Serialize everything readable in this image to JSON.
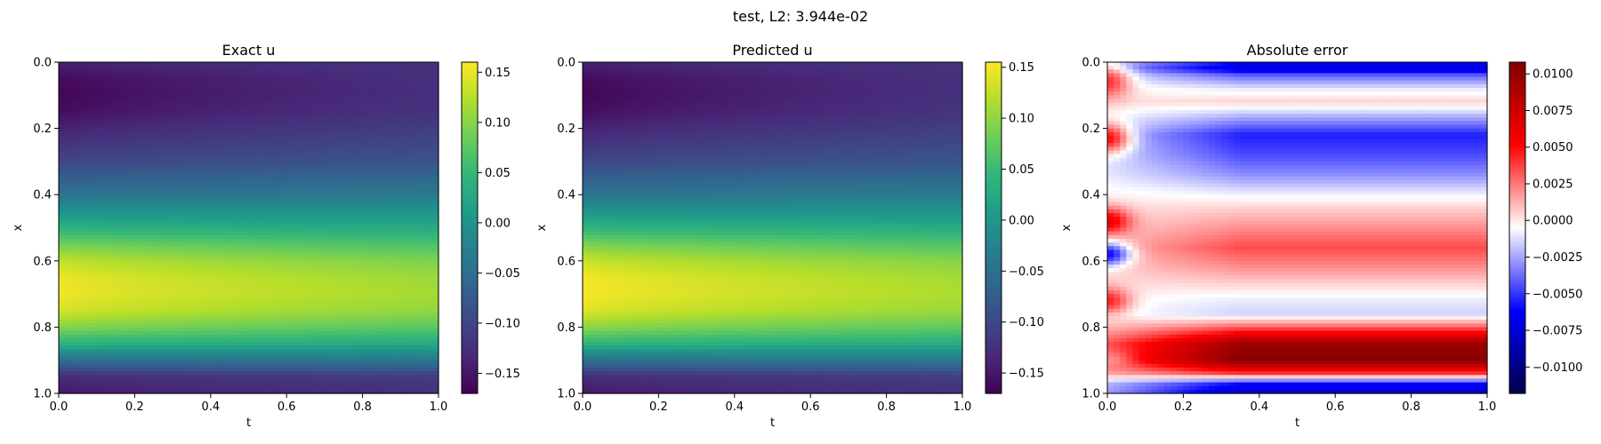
{
  "figure": {
    "suptitle": "test, L2: 3.944e-02"
  },
  "chart_data": [
    {
      "type": "heatmap",
      "title": "Exact u",
      "xlabel": "t",
      "ylabel": "x",
      "xlim": [
        0.0,
        1.0
      ],
      "ylim": [
        1.0,
        0.0
      ],
      "xticks": [
        "0.0",
        "0.2",
        "0.4",
        "0.6",
        "0.8",
        "1.0"
      ],
      "yticks": [
        "0.0",
        "0.2",
        "0.4",
        "0.6",
        "0.8",
        "1.0"
      ],
      "colormap": "viridis",
      "colorbar": {
        "range": [
          -0.17,
          0.16
        ],
        "ticks": [
          0.15,
          0.1,
          0.05,
          0.0,
          -0.05,
          -0.1,
          -0.15
        ],
        "tick_labels": [
          "0.15",
          "0.10",
          "0.05",
          "0.00",
          "−0.05",
          "−0.10",
          "−0.15"
        ]
      },
      "x_profile": {
        "x": [
          0.0,
          0.05,
          0.1,
          0.15,
          0.2,
          0.3,
          0.4,
          0.5,
          0.55,
          0.6,
          0.65,
          0.7,
          0.75,
          0.8,
          0.85,
          0.9,
          0.95,
          1.0
        ],
        "u_at_t0": [
          -0.14,
          -0.162,
          -0.168,
          -0.16,
          -0.14,
          -0.1,
          -0.045,
          0.04,
          0.09,
          0.13,
          0.152,
          0.155,
          0.14,
          0.1,
          0.04,
          -0.05,
          -0.13,
          -0.15
        ],
        "u_at_t1": [
          -0.12,
          -0.125,
          -0.125,
          -0.12,
          -0.11,
          -0.085,
          -0.035,
          0.03,
          0.065,
          0.095,
          0.11,
          0.115,
          0.105,
          0.075,
          0.03,
          -0.04,
          -0.11,
          -0.125
        ]
      }
    },
    {
      "type": "heatmap",
      "title": "Predicted u",
      "xlabel": "t",
      "ylabel": "x",
      "xlim": [
        0.0,
        1.0
      ],
      "ylim": [
        1.0,
        0.0
      ],
      "xticks": [
        "0.0",
        "0.2",
        "0.4",
        "0.6",
        "0.8",
        "1.0"
      ],
      "yticks": [
        "0.0",
        "0.2",
        "0.4",
        "0.6",
        "0.8",
        "1.0"
      ],
      "colormap": "viridis",
      "colorbar": {
        "range": [
          -0.17,
          0.155
        ],
        "ticks": [
          0.15,
          0.1,
          0.05,
          0.0,
          -0.05,
          -0.1,
          -0.15
        ],
        "tick_labels": [
          "0.15",
          "0.10",
          "0.05",
          "0.00",
          "−0.05",
          "−0.10",
          "−0.15"
        ]
      },
      "x_profile": {
        "x": [
          0.0,
          0.05,
          0.1,
          0.15,
          0.2,
          0.3,
          0.4,
          0.5,
          0.55,
          0.6,
          0.65,
          0.7,
          0.75,
          0.8,
          0.85,
          0.9,
          0.95,
          1.0
        ],
        "u_at_t0": [
          -0.14,
          -0.162,
          -0.168,
          -0.16,
          -0.14,
          -0.1,
          -0.045,
          0.04,
          0.09,
          0.13,
          0.152,
          0.155,
          0.14,
          0.1,
          0.04,
          -0.05,
          -0.13,
          -0.15
        ],
        "u_at_t1": [
          -0.12,
          -0.125,
          -0.125,
          -0.12,
          -0.11,
          -0.085,
          -0.035,
          0.03,
          0.065,
          0.095,
          0.11,
          0.115,
          0.105,
          0.075,
          0.03,
          -0.04,
          -0.11,
          -0.125
        ]
      }
    },
    {
      "type": "heatmap",
      "title": "Absolute error",
      "xlabel": "t",
      "ylabel": "x",
      "xlim": [
        0.0,
        1.0
      ],
      "ylim": [
        1.0,
        0.0
      ],
      "xticks": [
        "0.0",
        "0.2",
        "0.4",
        "0.6",
        "0.8",
        "1.0"
      ],
      "yticks": [
        "0.0",
        "0.2",
        "0.4",
        "0.6",
        "0.8",
        "1.0"
      ],
      "colormap": "seismic",
      "colorbar": {
        "range": [
          -0.0118,
          0.0108
        ],
        "ticks": [
          0.01,
          0.0075,
          0.005,
          0.0025,
          0.0,
          -0.0025,
          -0.005,
          -0.0075,
          -0.01
        ],
        "tick_labels": [
          "0.0100",
          "0.0075",
          "0.0050",
          "0.0025",
          "0.0000",
          "−0.0025",
          "−0.0050",
          "−0.0075",
          "−0.0100"
        ]
      },
      "bands": {
        "x": [
          0.0,
          0.02,
          0.04,
          0.08,
          0.12,
          0.16,
          0.22,
          0.28,
          0.34,
          0.4,
          0.44,
          0.5,
          0.56,
          0.62,
          0.66,
          0.72,
          0.76,
          0.8,
          0.85,
          0.9,
          0.94,
          0.97,
          1.0
        ],
        "error_at_t1": [
          -0.006,
          -0.0075,
          -0.004,
          -0.001,
          0.0005,
          -0.002,
          -0.0055,
          -0.0045,
          -0.003,
          -0.0008,
          0.0005,
          0.002,
          0.0035,
          0.002,
          0.0008,
          -0.001,
          -0.0015,
          0.003,
          0.0095,
          0.0105,
          0.004,
          -0.006,
          -0.008
        ],
        "edge_spots": [
          {
            "x": 0.06,
            "width": 0.05,
            "peak": 0.004
          },
          {
            "x": 0.23,
            "width": 0.045,
            "peak": 0.005
          },
          {
            "x": 0.48,
            "width": 0.04,
            "peak": 0.006
          },
          {
            "x": 0.58,
            "width": 0.035,
            "peak": -0.006
          },
          {
            "x": 0.72,
            "width": 0.04,
            "peak": 0.0045
          },
          {
            "x": 0.9,
            "width": 0.03,
            "peak": 0.002
          }
        ]
      }
    }
  ]
}
